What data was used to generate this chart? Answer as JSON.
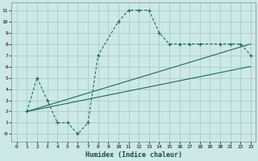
{
  "xlabel": "Humidex (Indice chaleur)",
  "bg_color": "#cce8e8",
  "grid_color": "#b0d4d4",
  "line_color": "#1a6b5a",
  "xlim": [
    -0.5,
    23.5
  ],
  "ylim": [
    -0.7,
    11.7
  ],
  "xticks": [
    0,
    1,
    2,
    3,
    4,
    5,
    6,
    7,
    8,
    9,
    10,
    11,
    12,
    13,
    14,
    15,
    16,
    17,
    18,
    19,
    20,
    21,
    22,
    23
  ],
  "yticks": [
    0,
    1,
    2,
    3,
    4,
    5,
    6,
    7,
    8,
    9,
    10,
    11
  ],
  "ytick_labels": [
    "-0",
    "1",
    "2",
    "3",
    "4",
    "5",
    "6",
    "7",
    "8",
    "9",
    "10",
    "11"
  ],
  "main_curve_x": [
    1,
    2,
    3,
    4,
    5,
    6,
    7,
    8,
    10,
    11,
    12,
    13,
    14,
    15,
    16,
    17,
    18,
    20,
    21,
    22,
    23
  ],
  "main_curve_y": [
    2,
    5,
    3,
    1,
    1,
    0,
    1,
    7,
    10,
    11,
    11,
    11,
    9,
    8,
    8,
    8,
    8,
    8,
    8,
    8,
    7
  ],
  "line1_x": [
    1,
    23
  ],
  "line1_y": [
    2,
    8
  ],
  "line2_x": [
    1,
    23
  ],
  "line2_y": [
    2,
    6
  ]
}
